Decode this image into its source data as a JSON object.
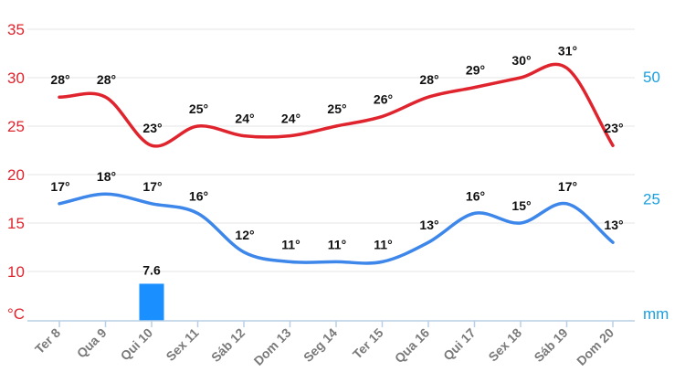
{
  "chart_data": {
    "type": "line",
    "categories": [
      "Ter 8",
      "Qua 9",
      "Qui 10",
      "Sex 11",
      "Sáb 12",
      "Dom 13",
      "Seg 14",
      "Ter 15",
      "Qua 16",
      "Qui 17",
      "Sex 18",
      "Sáb 19",
      "Dom 20"
    ],
    "left_axis": {
      "unit_label": "°C",
      "ticks": [
        10,
        15,
        20,
        25,
        30,
        35
      ],
      "range": [
        5.5,
        35
      ]
    },
    "right_axis": {
      "unit_label": "mm",
      "ticks": [
        25,
        50
      ],
      "range": [
        0,
        63
      ]
    },
    "series": [
      {
        "role": "max",
        "color": "#e0242e",
        "axis": "left",
        "values": [
          28,
          28,
          23,
          25,
          24,
          24,
          25,
          26,
          28,
          29,
          30,
          31,
          23
        ],
        "labels": [
          "28°",
          "28°",
          "23°",
          "25°",
          "24°",
          "24°",
          "25°",
          "26°",
          "28°",
          "29°",
          "30°",
          "31°",
          "23°"
        ]
      },
      {
        "role": "min",
        "color": "#3d86ea",
        "axis": "left",
        "values": [
          17,
          18,
          17,
          16,
          12,
          11,
          11,
          11,
          13,
          16,
          15,
          17,
          13
        ],
        "labels": [
          "17°",
          "18°",
          "17°",
          "16°",
          "12°",
          "11°",
          "11°",
          "11°",
          "13°",
          "16°",
          "15°",
          "17°",
          "13°"
        ]
      },
      {
        "role": "precipitation",
        "type": "bar",
        "color": "#1a8fff",
        "axis": "right",
        "values": [
          0,
          0,
          7.6,
          0,
          0,
          0,
          0,
          0,
          0,
          0,
          0,
          0,
          0
        ],
        "labels": [
          "",
          "",
          "7.6",
          "",
          "",
          "",
          "",
          "",
          "",
          "",
          "",
          "",
          ""
        ]
      }
    ],
    "grid": true,
    "legend": "none"
  }
}
